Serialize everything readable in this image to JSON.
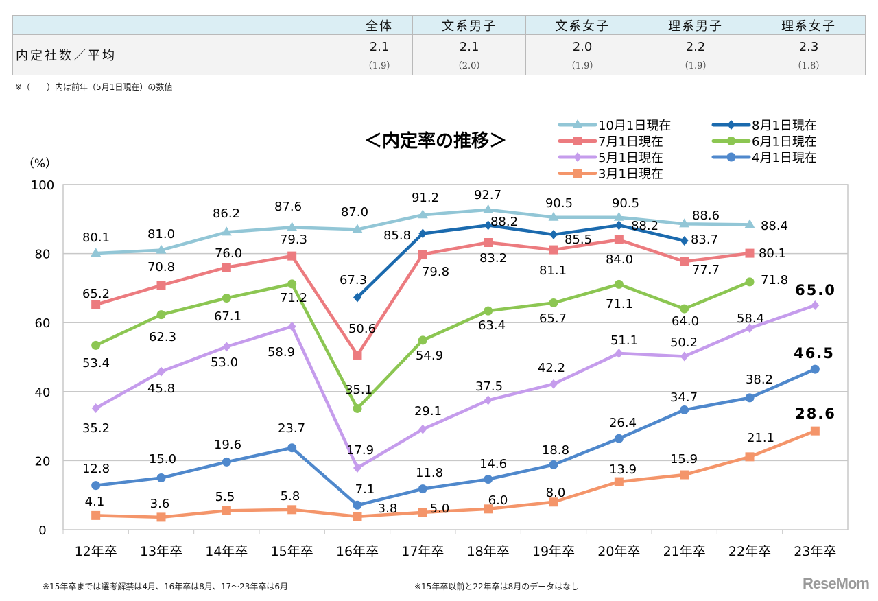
{
  "table": {
    "row_label": "内定社数／平均",
    "columns": [
      "全体",
      "文系男子",
      "文系女子",
      "理系男子",
      "理系女子"
    ],
    "values": [
      "2.1",
      "2.1",
      "2.0",
      "2.2",
      "2.3"
    ],
    "previous": [
      "（1.9）",
      "（2.0）",
      "（1.9）",
      "（1.9）",
      "（1.8）"
    ]
  },
  "table_note": "※（　　）内は前年（5月1日現在）の数値",
  "footnotes": [
    "※15年卒までは選考解禁は4月、16年卒は8月、17～23年卒は6月",
    "※15年卒以前と22年卒は8月のデータはなし"
  ],
  "logo_text": "ReseMom",
  "chart_data": {
    "type": "line",
    "title": "＜内定率の推移＞",
    "ylabel": "（%）",
    "ylim": [
      0,
      100
    ],
    "yticks": [
      0,
      20,
      40,
      60,
      80,
      100
    ],
    "grid": true,
    "legend_position": "top-right",
    "categories": [
      "12年卒",
      "13年卒",
      "14年卒",
      "15年卒",
      "16年卒",
      "17年卒",
      "18年卒",
      "19年卒",
      "20年卒",
      "21年卒",
      "22年卒",
      "23年卒"
    ],
    "series": [
      {
        "name": "10月1日現在",
        "color": "#92c6d6",
        "marker": "triangle",
        "values": [
          80.1,
          81.0,
          86.2,
          87.6,
          87.0,
          91.2,
          92.7,
          90.5,
          90.5,
          88.6,
          88.4,
          null
        ]
      },
      {
        "name": "8月1日現在",
        "color": "#1b6aae",
        "marker": "diamond",
        "values": [
          null,
          null,
          null,
          null,
          67.3,
          85.8,
          88.2,
          85.5,
          88.2,
          83.7,
          null,
          null
        ]
      },
      {
        "name": "7月1日現在",
        "color": "#ec7b7f",
        "marker": "square",
        "values": [
          65.2,
          70.8,
          76.0,
          79.3,
          50.6,
          79.8,
          83.2,
          81.1,
          84.0,
          77.7,
          80.1,
          null
        ]
      },
      {
        "name": "6月1日現在",
        "color": "#8cc652",
        "marker": "circle",
        "values": [
          53.4,
          62.3,
          67.1,
          71.2,
          35.1,
          54.9,
          63.4,
          65.7,
          71.1,
          64.0,
          71.8,
          null
        ]
      },
      {
        "name": "5月1日現在",
        "color": "#c59cec",
        "marker": "diamond",
        "values": [
          35.2,
          45.8,
          53.0,
          58.9,
          17.9,
          29.1,
          37.5,
          42.2,
          51.1,
          50.2,
          58.4,
          65.0
        ]
      },
      {
        "name": "4月1日現在",
        "color": "#4f88cc",
        "marker": "circle",
        "values": [
          12.8,
          15.0,
          19.6,
          23.7,
          7.1,
          11.8,
          14.6,
          18.8,
          26.4,
          34.7,
          38.2,
          46.5
        ]
      },
      {
        "name": "3月1日現在",
        "color": "#f4956a",
        "marker": "square",
        "values": [
          4.1,
          3.6,
          5.5,
          5.8,
          3.8,
          5.0,
          6.0,
          8.0,
          13.9,
          15.9,
          21.1,
          28.6
        ]
      }
    ]
  }
}
